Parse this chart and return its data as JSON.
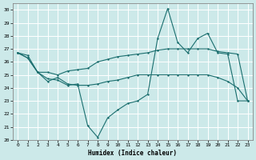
{
  "xlabel": "Humidex (Indice chaleur)",
  "ylabel": "",
  "bg_color": "#cce9e9",
  "grid_color": "#ffffff",
  "line_color": "#1a6e6e",
  "xlim": [
    -0.5,
    23.5
  ],
  "ylim": [
    20,
    30.5
  ],
  "yticks": [
    20,
    21,
    22,
    23,
    24,
    25,
    26,
    27,
    28,
    29,
    30
  ],
  "xticks": [
    0,
    1,
    2,
    3,
    4,
    5,
    6,
    7,
    8,
    9,
    10,
    11,
    12,
    13,
    14,
    15,
    16,
    17,
    18,
    19,
    20,
    21,
    22,
    23
  ],
  "line1_x": [
    0,
    1,
    2,
    3,
    4,
    5,
    6,
    7,
    8,
    9,
    10,
    11,
    12,
    13,
    14,
    15,
    16,
    17,
    18,
    19,
    20,
    21,
    22,
    23
  ],
  "line1_y": [
    26.7,
    26.5,
    25.2,
    25.2,
    25.0,
    25.3,
    25.4,
    25.5,
    26.0,
    26.2,
    26.4,
    26.5,
    26.6,
    26.7,
    26.9,
    27.0,
    27.0,
    27.0,
    27.0,
    27.0,
    26.8,
    26.7,
    26.6,
    23.0
  ],
  "line2_x": [
    0,
    1,
    2,
    3,
    4,
    5,
    6,
    7,
    8,
    9,
    10,
    11,
    12,
    13,
    14,
    15,
    16,
    17,
    18,
    19,
    20,
    21,
    22,
    23
  ],
  "line2_y": [
    26.7,
    26.3,
    25.2,
    24.7,
    24.6,
    24.2,
    24.3,
    21.1,
    20.2,
    21.7,
    22.3,
    22.8,
    23.0,
    23.5,
    27.8,
    30.1,
    27.5,
    26.7,
    27.8,
    28.2,
    26.7,
    26.6,
    23.0,
    23.0
  ],
  "line3_x": [
    0,
    1,
    2,
    3,
    4,
    5,
    6,
    7,
    8,
    9,
    10,
    11,
    12,
    13,
    14,
    15,
    16,
    17,
    18,
    19,
    20,
    21,
    22,
    23
  ],
  "line3_y": [
    26.7,
    26.3,
    25.2,
    24.5,
    24.8,
    24.3,
    24.2,
    24.2,
    24.3,
    24.5,
    24.6,
    24.8,
    25.0,
    25.0,
    25.0,
    25.0,
    25.0,
    25.0,
    25.0,
    25.0,
    24.8,
    24.5,
    24.0,
    23.0
  ]
}
